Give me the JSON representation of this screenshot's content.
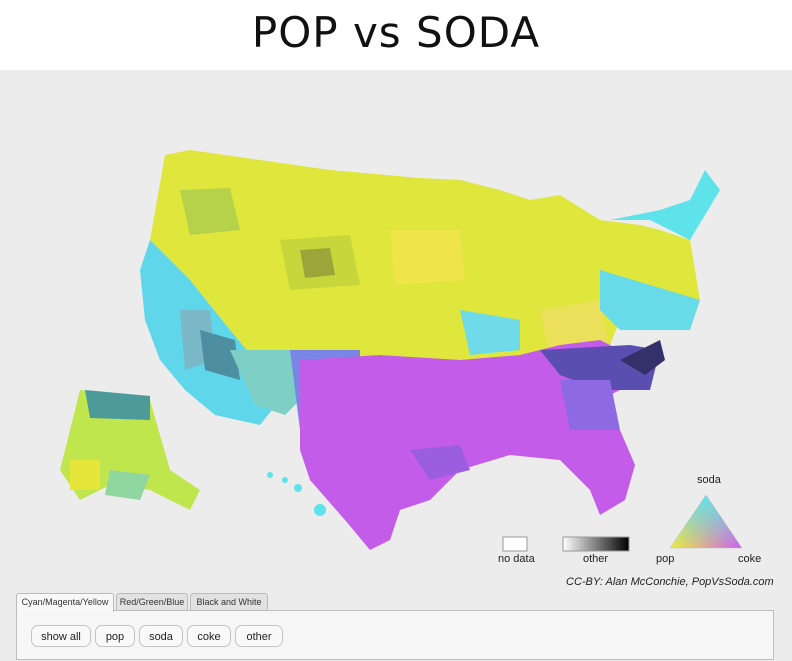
{
  "title": "POP vs SODA",
  "legend": {
    "no_data": "no data",
    "other": "other",
    "triangle": {
      "top": "soda",
      "left": "pop",
      "right": "coke"
    }
  },
  "credit": "CC-BY: Alan McConchie, PopVsSoda.com",
  "tabs": [
    "Cyan/Magenta/Yellow",
    "Red/Green/Blue",
    "Black and White"
  ],
  "active_tab": "Cyan/Magenta/Yellow",
  "buttons": [
    "show all",
    "pop",
    "soda",
    "coke",
    "other"
  ],
  "colors": {
    "pop": "#e4ec3a",
    "soda": "#5fe3ea",
    "coke": "#c35ce8",
    "background": "#ececec"
  }
}
